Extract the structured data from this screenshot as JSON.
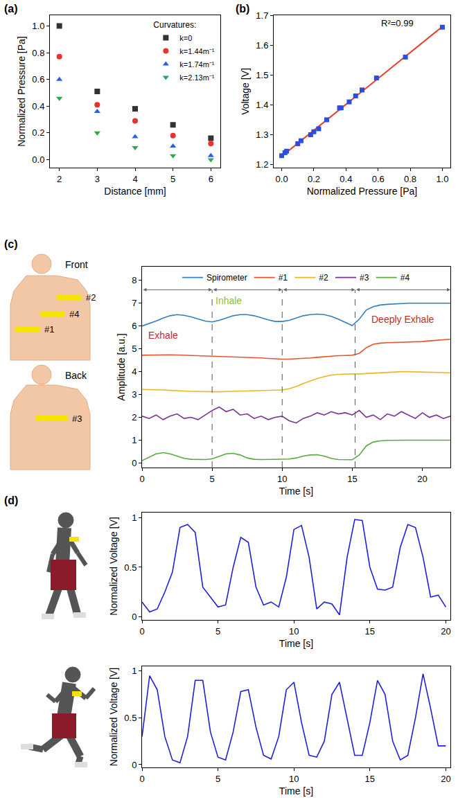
{
  "chart_data": [
    {
      "type": "scatter",
      "panel_label": "(a)",
      "x_label": "Distance [mm]",
      "y_label": "Normalized Pressure [Pa]",
      "x": [
        2,
        3,
        4,
        5,
        6
      ],
      "series": [
        {
          "name": "k=0",
          "color": "#333333",
          "marker": "square",
          "values": [
            1.0,
            0.51,
            0.38,
            0.26,
            0.16
          ]
        },
        {
          "name": "k=1.44m⁻¹",
          "color": "#e8322b",
          "marker": "circle",
          "values": [
            0.77,
            0.41,
            0.29,
            0.18,
            0.12
          ]
        },
        {
          "name": "k=1.74m⁻¹",
          "color": "#2a5ee8",
          "marker": "triangle-up",
          "values": [
            0.6,
            0.36,
            0.17,
            0.1,
            0.03
          ]
        },
        {
          "name": "k=2.13m⁻¹",
          "color": "#2aa84a",
          "marker": "triangle-down",
          "values": [
            0.46,
            0.2,
            0.09,
            0.03,
            0.0
          ]
        }
      ],
      "legend": "top right",
      "legend_title": "Curvatures:",
      "xlim": [
        1.75,
        6.25
      ],
      "xticks": [
        2,
        3,
        4,
        5,
        6
      ],
      "ylim": [
        -0.06,
        1.08
      ],
      "yticks": [
        {
          "value": 0,
          "label": "0.0"
        },
        0.2,
        0.4,
        0.6,
        0.8,
        {
          "value": 1,
          "label": "1.0"
        }
      ],
      "grid": false
    },
    {
      "type": "scatter",
      "panel_label": "(b)",
      "x_label": "Normalized Pressure [Pa]",
      "y_label": "Voltage [V]",
      "x": [
        0,
        0.02,
        0.03,
        0.1,
        0.12,
        0.18,
        0.2,
        0.23,
        0.28,
        0.36,
        0.37,
        0.42,
        0.46,
        0.5,
        0.59,
        0.77,
        1.0
      ],
      "series": [
        {
          "color": "#2b4ee0",
          "marker": "square",
          "values": [
            1.23,
            1.24,
            1.245,
            1.27,
            1.28,
            1.3,
            1.31,
            1.32,
            1.35,
            1.39,
            1.39,
            1.41,
            1.43,
            1.45,
            1.49,
            1.56,
            1.66
          ]
        }
      ],
      "fit": {
        "x": [
          0,
          1
        ],
        "values": [
          1.228,
          1.662
        ],
        "color": "#e8412c",
        "line_style": "solid"
      },
      "annotations": [
        {
          "text": "R²=0.99"
        }
      ],
      "xlim": [
        -0.05,
        1.05
      ],
      "xticks": [
        {
          "value": 0,
          "label": "0.0"
        },
        0.2,
        0.4,
        0.6,
        0.8,
        {
          "value": 1,
          "label": "1.0"
        }
      ],
      "ylim": [
        1.19,
        1.7
      ],
      "yticks": [
        1.2,
        1.3,
        1.4,
        1.5,
        1.6,
        1.7
      ],
      "grid": false
    },
    {
      "type": "line",
      "panel_label": "(c)",
      "x_label": "Time [s]",
      "y_label": "Amplitude [a.u.]",
      "body_views": [
        "Front",
        "Back"
      ],
      "x": [
        0,
        0.5,
        1,
        1.5,
        2,
        2.5,
        3,
        3.5,
        4,
        4.5,
        5,
        5.5,
        6,
        6.5,
        7,
        7.5,
        8,
        8.5,
        9,
        9.5,
        10,
        10.5,
        11,
        11.5,
        12,
        12.5,
        13,
        13.5,
        14,
        14.5,
        15,
        15.5,
        16,
        16.5,
        17,
        17.5,
        18,
        18.5,
        19,
        19.5,
        20,
        20.5,
        21,
        21.5,
        22
      ],
      "series": [
        {
          "name": "Spirometer",
          "color": "#2f7fc1",
          "line_style": "solid",
          "values": [
            6.0,
            6.1,
            6.22,
            6.35,
            6.45,
            6.5,
            6.47,
            6.4,
            6.3,
            6.22,
            6.18,
            6.25,
            6.35,
            6.45,
            6.5,
            6.5,
            6.45,
            6.35,
            6.27,
            6.2,
            6.2,
            6.25,
            6.35,
            6.45,
            6.5,
            6.52,
            6.5,
            6.42,
            6.3,
            6.15,
            6.02,
            6.3,
            6.7,
            6.85,
            6.92,
            6.95,
            6.97,
            6.98,
            7.0,
            7.0,
            7.0,
            7.0,
            7.0,
            7.0,
            7.0
          ]
        },
        {
          "name": "#1",
          "color": "#e4572e",
          "line_style": "solid",
          "values": [
            4.72,
            4.73,
            4.72,
            4.73,
            4.74,
            4.73,
            4.72,
            4.72,
            4.7,
            4.7,
            4.69,
            4.68,
            4.66,
            4.64,
            4.63,
            4.62,
            4.62,
            4.6,
            4.58,
            4.56,
            4.55,
            4.55,
            4.56,
            4.58,
            4.6,
            4.63,
            4.66,
            4.68,
            4.7,
            4.71,
            4.72,
            4.8,
            5.05,
            5.2,
            5.25,
            5.27,
            5.28,
            5.29,
            5.3,
            5.3,
            5.32,
            5.35,
            5.38,
            5.4,
            5.42
          ]
        },
        {
          "name": "#2",
          "color": "#eeb422",
          "line_style": "solid",
          "values": [
            3.22,
            3.22,
            3.21,
            3.2,
            3.18,
            3.16,
            3.15,
            3.14,
            3.13,
            3.12,
            3.12,
            3.12,
            3.13,
            3.14,
            3.15,
            3.15,
            3.16,
            3.17,
            3.18,
            3.19,
            3.2,
            3.25,
            3.35,
            3.48,
            3.6,
            3.7,
            3.78,
            3.85,
            3.88,
            3.9,
            3.9,
            3.9,
            3.92,
            3.94,
            3.96,
            3.98,
            4.0,
            4.0,
            4.0,
            3.99,
            3.98,
            3.97,
            3.96,
            3.95,
            3.95
          ]
        },
        {
          "name": "#3",
          "color": "#7b3294",
          "line_style": "solid",
          "values": [
            2.05,
            1.95,
            2.1,
            1.9,
            2.05,
            2.15,
            1.95,
            2.0,
            1.9,
            2.1,
            2.3,
            2.45,
            2.25,
            2.35,
            2.1,
            2.15,
            1.95,
            2.05,
            1.9,
            2.0,
            2.05,
            1.85,
            1.75,
            1.95,
            2.05,
            2.2,
            2.1,
            2.25,
            2.15,
            2.2,
            2.1,
            2.3,
            2.0,
            2.1,
            1.9,
            2.15,
            2.05,
            2.25,
            2.1,
            1.95,
            2.2,
            2.0,
            2.1,
            1.95,
            2.05
          ]
        },
        {
          "name": "#4",
          "color": "#5aaa3c",
          "line_style": "solid",
          "values": [
            0.1,
            0.25,
            0.4,
            0.45,
            0.4,
            0.3,
            0.2,
            0.16,
            0.15,
            0.15,
            0.18,
            0.3,
            0.4,
            0.42,
            0.35,
            0.22,
            0.16,
            0.15,
            0.15,
            0.15,
            0.15,
            0.17,
            0.22,
            0.3,
            0.35,
            0.36,
            0.3,
            0.2,
            0.15,
            0.14,
            0.14,
            0.35,
            0.75,
            0.92,
            0.97,
            0.99,
            1.0,
            1.0,
            1.0,
            1.0,
            1.0,
            1.0,
            1.0,
            1.0,
            1.0
          ]
        }
      ],
      "phase_bounds": [
        0,
        5,
        10,
        15.2,
        22
      ],
      "annotations": [
        {
          "text": "Exhale",
          "x": 1.5,
          "y": 5.6,
          "color": "#c62828"
        },
        {
          "text": "Inhale",
          "x": 6.2,
          "y": 7.1,
          "color": "#8cbf3f"
        },
        {
          "text": "Deeply Exhale",
          "x": 18.6,
          "y": 6.3,
          "color": "#c62828"
        }
      ],
      "legend": "top",
      "xlim": [
        0,
        22
      ],
      "xticks": [
        0,
        5,
        10,
        15,
        20
      ],
      "ylim": [
        -0.2,
        8.6
      ],
      "yticks": [
        0,
        1,
        2,
        3,
        4,
        5,
        6,
        7,
        8
      ],
      "grid": false
    },
    {
      "type": "line",
      "panel_label": "(d)",
      "x_label": "Time [s]",
      "y_label": "Normalized Voltage [V]",
      "x": [
        0,
        0.5,
        1,
        1.5,
        2,
        2.5,
        3,
        3.5,
        4,
        4.5,
        5,
        5.5,
        6,
        6.5,
        7,
        7.5,
        8,
        8.5,
        9,
        9.5,
        10,
        10.5,
        11,
        11.5,
        12,
        12.5,
        13,
        13.5,
        14,
        14.5,
        15,
        15.5,
        16,
        16.5,
        17,
        17.5,
        18,
        18.5,
        19,
        19.5,
        20
      ],
      "series": [
        {
          "color": "#1f1fe0",
          "line_style": "solid",
          "values": [
            0.15,
            0.05,
            0.08,
            0.25,
            0.45,
            0.9,
            0.93,
            0.85,
            0.3,
            0.2,
            0.1,
            0.12,
            0.5,
            0.8,
            0.75,
            0.3,
            0.12,
            0.15,
            0.1,
            0.4,
            0.88,
            0.92,
            0.6,
            0.08,
            0.15,
            0.13,
            0.02,
            0.6,
            0.98,
            0.97,
            0.5,
            0.28,
            0.27,
            0.3,
            0.7,
            0.93,
            0.9,
            0.6,
            0.2,
            0.22,
            0.1
          ]
        }
      ],
      "xlim": [
        0,
        20.3
      ],
      "xticks": [
        0,
        5,
        10,
        15,
        20
      ],
      "ylim": [
        -0.03,
        1.05
      ],
      "yticks": [
        0,
        0.5,
        1
      ],
      "grid": false
    },
    {
      "type": "line",
      "x_label": "Time [s]",
      "y_label": "Normalized Voltage [V]",
      "x": [
        0,
        0.5,
        1,
        1.5,
        2,
        2.5,
        3,
        3.5,
        4,
        4.5,
        5,
        5.5,
        6,
        6.5,
        7,
        7.5,
        8,
        8.5,
        9,
        9.5,
        10,
        10.5,
        11,
        11.5,
        12,
        12.5,
        13,
        13.5,
        14,
        14.5,
        15,
        15.5,
        16,
        16.5,
        17,
        17.5,
        18,
        18.5,
        19,
        19.5,
        20
      ],
      "series": [
        {
          "color": "#1f1fe0",
          "line_style": "solid",
          "values": [
            0.3,
            0.95,
            0.8,
            0.3,
            0.05,
            0.02,
            0.3,
            0.9,
            0.9,
            0.35,
            0.08,
            0.05,
            0.35,
            0.78,
            0.8,
            0.4,
            0.1,
            0.06,
            0.3,
            0.8,
            0.88,
            0.45,
            0.1,
            0.08,
            0.25,
            0.75,
            0.88,
            0.5,
            0.1,
            0.1,
            0.45,
            0.9,
            0.75,
            0.25,
            0.05,
            0.1,
            0.5,
            0.97,
            0.6,
            0.2,
            0.2
          ]
        }
      ],
      "xlim": [
        0,
        20.3
      ],
      "xticks": [
        0,
        5,
        10,
        15,
        20
      ],
      "ylim": [
        -0.03,
        1.05
      ],
      "yticks": [
        0,
        0.5,
        1
      ],
      "grid": false
    }
  ]
}
